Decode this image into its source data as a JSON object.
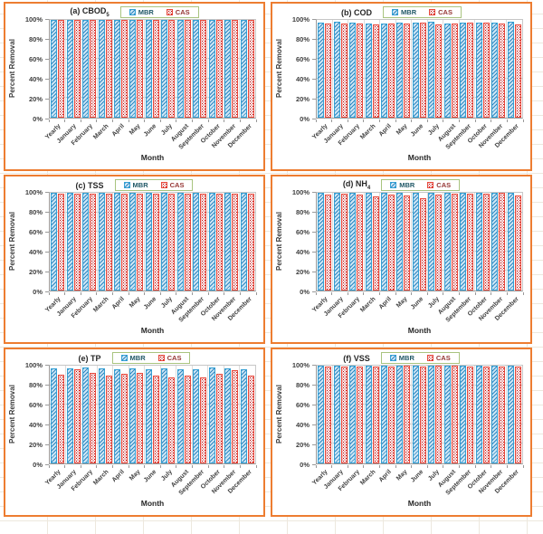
{
  "sheet": {
    "background": "#FFFFFF"
  },
  "colors": {
    "panel_border": "#ED7D31",
    "legend_border": "#A9C47F",
    "sheet_grid": "#EDE8DE",
    "mbr_fill": "#CDE6F5",
    "mbr_stripe": "#2E86C1",
    "mbr_border": "#35A0D4",
    "mbr_text": "#205867",
    "cas_fill": "#FFFFFF",
    "cas_dot": "#C00000",
    "cas_border": "#E8493C",
    "cas_text": "#963634",
    "grid_h": "#C6C6C6",
    "grid_v": "#DCDCDC",
    "axis": "#9A9A9A",
    "text": "#3F3F3F"
  },
  "legend_labels": [
    "MBR",
    "CAS"
  ],
  "chart_data": [
    {
      "type": "bar",
      "title": "(a) CBOD",
      "title_sub": "5",
      "xlabel": "Month",
      "ylabel": "Percent Removal",
      "ylim": [
        0,
        100
      ],
      "ytick_values": [
        0,
        20,
        40,
        60,
        80,
        100
      ],
      "ytick_suffix": "%",
      "legend_position": "top",
      "categories": [
        "Yearly",
        "January",
        "February",
        "March",
        "April",
        "May",
        "June",
        "July",
        "August",
        "September",
        "October",
        "November",
        "December"
      ],
      "series": [
        {
          "name": "MBR",
          "values": [
            100,
            100,
            100,
            100,
            100,
            100,
            100,
            100,
            100,
            100,
            100,
            100,
            100
          ]
        },
        {
          "name": "CAS",
          "values": [
            100,
            100,
            100,
            100,
            100,
            100,
            100,
            100,
            100,
            100,
            100,
            100,
            100
          ]
        }
      ]
    },
    {
      "type": "bar",
      "title": "(b) COD",
      "title_sub": "",
      "xlabel": "Month",
      "ylabel": "Percent Removal",
      "ylim": [
        0,
        100
      ],
      "ytick_values": [
        0,
        20,
        40,
        60,
        80,
        100
      ],
      "ytick_suffix": "%",
      "legend_position": "top",
      "categories": [
        "Yearly",
        "January",
        "February",
        "March",
        "April",
        "May",
        "June",
        "July",
        "August",
        "September",
        "October",
        "November",
        "December"
      ],
      "series": [
        {
          "name": "MBR",
          "values": [
            97,
            98,
            97,
            96,
            96,
            97,
            97,
            98,
            96,
            97,
            97,
            97,
            98
          ]
        },
        {
          "name": "CAS",
          "values": [
            96,
            96,
            96,
            95,
            96,
            96,
            97,
            95,
            96,
            97,
            97,
            96,
            95
          ]
        }
      ]
    },
    {
      "type": "bar",
      "title": "(c) TSS",
      "title_sub": "",
      "xlabel": "Month",
      "ylabel": "Percent Removal",
      "ylim": [
        0,
        100
      ],
      "ytick_values": [
        0,
        20,
        40,
        60,
        80,
        100
      ],
      "ytick_suffix": "%",
      "legend_position": "top",
      "categories": [
        "Yearly",
        "January",
        "February",
        "March",
        "April",
        "May",
        "June",
        "July",
        "August",
        "September",
        "October",
        "November",
        "December"
      ],
      "series": [
        {
          "name": "MBR",
          "values": [
            100,
            100,
            100,
            100,
            100,
            100,
            100,
            100,
            100,
            100,
            100,
            100,
            100
          ]
        },
        {
          "name": "CAS",
          "values": [
            99,
            99,
            99,
            99,
            99,
            99,
            99,
            99,
            99,
            99,
            99,
            99,
            99
          ]
        }
      ]
    },
    {
      "type": "bar",
      "title": "(d) NH",
      "title_sub": "4",
      "xlabel": "Month",
      "ylabel": "Percent Removal",
      "ylim": [
        0,
        100
      ],
      "ytick_values": [
        0,
        20,
        40,
        60,
        80,
        100
      ],
      "ytick_suffix": "%",
      "legend_position": "top",
      "categories": [
        "Yearly",
        "January",
        "February",
        "March",
        "April",
        "May",
        "June",
        "July",
        "August",
        "September",
        "October",
        "November",
        "December"
      ],
      "series": [
        {
          "name": "MBR",
          "values": [
            100,
            100,
            100,
            100,
            100,
            100,
            100,
            100,
            100,
            100,
            100,
            100,
            100
          ]
        },
        {
          "name": "CAS",
          "values": [
            98,
            99,
            98,
            96,
            98,
            97,
            94,
            98,
            99,
            99,
            99,
            100,
            97
          ]
        }
      ]
    },
    {
      "type": "bar",
      "title": "(e) TP",
      "title_sub": "",
      "xlabel": "Month",
      "ylabel": "Percent Removal",
      "ylim": [
        0,
        100
      ],
      "ytick_values": [
        0,
        20,
        40,
        60,
        80,
        100
      ],
      "ytick_suffix": "%",
      "legend_position": "top",
      "categories": [
        "Yearly",
        "January",
        "February",
        "March",
        "April",
        "May",
        "June",
        "July",
        "August",
        "September",
        "October",
        "November",
        "December"
      ],
      "series": [
        {
          "name": "MBR",
          "values": [
            97,
            97,
            98,
            97,
            96,
            97,
            96,
            97,
            96,
            96,
            98,
            97,
            96
          ]
        },
        {
          "name": "CAS",
          "values": [
            91,
            96,
            93,
            90,
            92,
            93,
            90,
            88,
            90,
            88,
            92,
            95,
            90
          ]
        }
      ]
    },
    {
      "type": "bar",
      "title": "(f) VSS",
      "title_sub": "",
      "xlabel": "Month",
      "ylabel": "Percent Removal",
      "ylim": [
        0,
        100
      ],
      "ytick_values": [
        0,
        20,
        40,
        60,
        80,
        100
      ],
      "ytick_suffix": "%",
      "legend_position": "top",
      "categories": [
        "Yearly",
        "January",
        "February",
        "March",
        "April",
        "May",
        "June",
        "July",
        "August",
        "September",
        "October",
        "November",
        "December"
      ],
      "series": [
        {
          "name": "MBR",
          "values": [
            100,
            100,
            100,
            100,
            100,
            100,
            100,
            100,
            100,
            100,
            100,
            100,
            100
          ]
        },
        {
          "name": "CAS",
          "values": [
            99,
            99,
            99,
            99,
            99,
            100,
            99,
            100,
            100,
            99,
            99,
            99,
            99
          ]
        }
      ]
    }
  ]
}
